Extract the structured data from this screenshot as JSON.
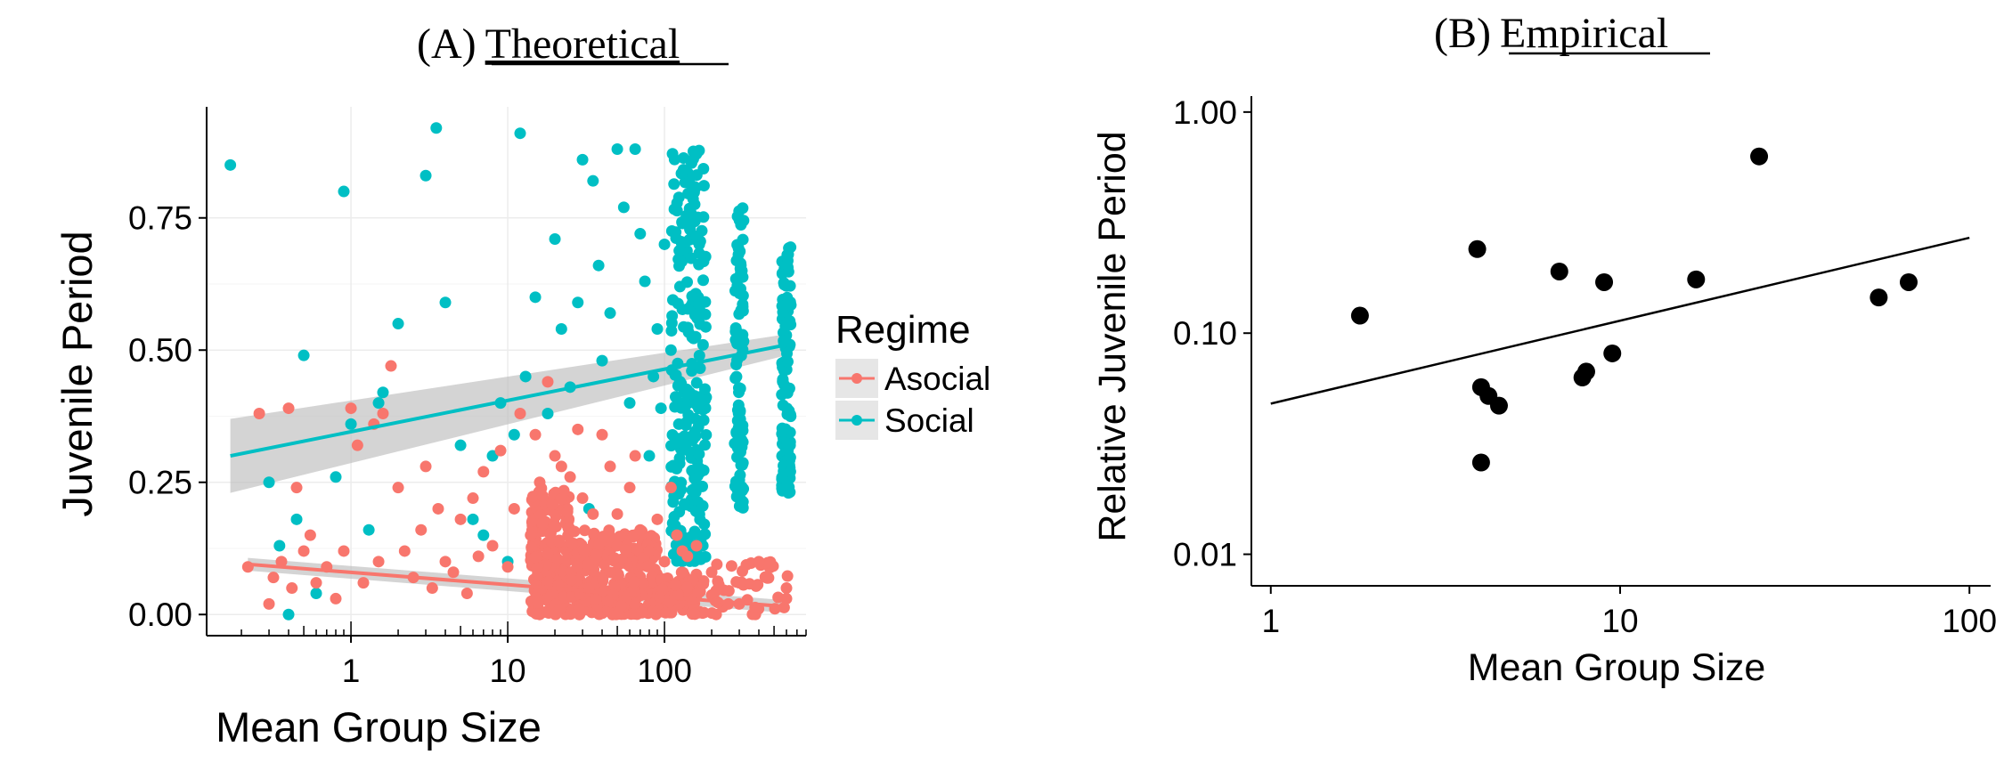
{
  "panels": {
    "a": {
      "prefix": "(A)",
      "name": "Theoretical"
    },
    "b": {
      "prefix": "(B)",
      "name": "Empirical"
    }
  },
  "chart_data": [
    {
      "type": "scatter",
      "title": "(A) Theoretical",
      "xlabel": "Mean Group Size",
      "ylabel": "Juvenile Period",
      "x_scale": "log10",
      "xlim": [
        0.12,
        800
      ],
      "ylim": [
        -0.04,
        0.96
      ],
      "x_ticks": [
        1,
        10,
        100
      ],
      "x_tick_labels": [
        "1",
        "10",
        "100"
      ],
      "y_ticks": [
        0,
        0.25,
        0.5,
        0.75
      ],
      "y_tick_labels": [
        "0.00",
        "0.25",
        "0.50",
        "0.75"
      ],
      "grid": true,
      "legend": {
        "title": "Regime",
        "placement": "right"
      },
      "colors": {
        "Asocial": "#F8766D",
        "Social": "#00BFC4",
        "ci_band": "#bdbdbd"
      },
      "series": [
        {
          "name": "Asocial",
          "color": "#F8766D",
          "points": [
            [
              0.22,
              0.09
            ],
            [
              0.26,
              0.38
            ],
            [
              0.3,
              0.02
            ],
            [
              0.32,
              0.07
            ],
            [
              0.36,
              0.1
            ],
            [
              0.4,
              0.39
            ],
            [
              0.42,
              0.05
            ],
            [
              0.45,
              0.24
            ],
            [
              0.5,
              0.12
            ],
            [
              0.55,
              0.15
            ],
            [
              0.6,
              0.06
            ],
            [
              0.7,
              0.09
            ],
            [
              0.8,
              0.03
            ],
            [
              0.9,
              0.12
            ],
            [
              1.0,
              0.39
            ],
            [
              1.1,
              0.32
            ],
            [
              1.2,
              0.06
            ],
            [
              1.4,
              0.36
            ],
            [
              1.5,
              0.1
            ],
            [
              1.6,
              0.38
            ],
            [
              1.8,
              0.47
            ],
            [
              2.0,
              0.24
            ],
            [
              2.2,
              0.12
            ],
            [
              2.5,
              0.07
            ],
            [
              2.8,
              0.16
            ],
            [
              3.0,
              0.28
            ],
            [
              3.3,
              0.05
            ],
            [
              3.6,
              0.2
            ],
            [
              4.0,
              0.1
            ],
            [
              4.5,
              0.08
            ],
            [
              5.0,
              0.18
            ],
            [
              5.5,
              0.04
            ],
            [
              6.0,
              0.22
            ],
            [
              6.5,
              0.11
            ],
            [
              7.0,
              0.27
            ],
            [
              8.0,
              0.13
            ],
            [
              9.0,
              0.31
            ],
            [
              10,
              0.09
            ],
            [
              11,
              0.2
            ],
            [
              12,
              0.38
            ],
            [
              14,
              0.15
            ],
            [
              15,
              0.34
            ],
            [
              16,
              0.25
            ],
            [
              18,
              0.44
            ],
            [
              20,
              0.3
            ],
            [
              22,
              0.28
            ],
            [
              25,
              0.26
            ],
            [
              28,
              0.35
            ],
            [
              30,
              0.22
            ],
            [
              35,
              0.19
            ],
            [
              40,
              0.34
            ],
            [
              45,
              0.28
            ],
            [
              50,
              0.19
            ],
            [
              60,
              0.24
            ],
            [
              65,
              0.3
            ],
            [
              70,
              0.16
            ],
            [
              80,
              0.12
            ],
            [
              90,
              0.18
            ],
            [
              100,
              0.1
            ],
            [
              110,
              0.24
            ],
            [
              120,
              0.15
            ],
            [
              130,
              0.12
            ],
            [
              140,
              0.11
            ],
            [
              160,
              0.13
            ],
            [
              200,
              0.08
            ],
            [
              300,
              0.06
            ],
            [
              400,
              0.1
            ],
            [
              600,
              0.05
            ],
            [
              600,
              0.03
            ],
            [
              300,
              0.02
            ]
          ],
          "dense_clusters": [
            {
              "x_range": [
                14,
                25
              ],
              "y_range": [
                0,
                0.24
              ],
              "count": 200
            },
            {
              "x_range": [
                25,
                90
              ],
              "y_range": [
                0,
                0.16
              ],
              "count": 300
            },
            {
              "x_range": [
                90,
                180
              ],
              "y_range": [
                0,
                0.08
              ],
              "count": 80
            },
            {
              "x_range": [
                200,
                620
              ],
              "y_range": [
                0,
                0.1
              ],
              "count": 40
            }
          ],
          "trend": {
            "x": [
              0.22,
              600
            ],
            "y": [
              0.095,
              0.015
            ],
            "ci": [
              0.012,
              0.012
            ]
          }
        },
        {
          "name": "Social",
          "color": "#00BFC4",
          "points": [
            [
              0.17,
              0.85
            ],
            [
              0.3,
              0.25
            ],
            [
              0.35,
              0.13
            ],
            [
              0.4,
              0.0
            ],
            [
              0.45,
              0.18
            ],
            [
              0.5,
              0.49
            ],
            [
              0.6,
              0.04
            ],
            [
              0.8,
              0.26
            ],
            [
              0.9,
              0.8
            ],
            [
              1.0,
              0.36
            ],
            [
              1.3,
              0.16
            ],
            [
              1.5,
              0.4
            ],
            [
              1.6,
              0.42
            ],
            [
              2.0,
              0.55
            ],
            [
              3.0,
              0.83
            ],
            [
              3.5,
              0.92
            ],
            [
              4.0,
              0.59
            ],
            [
              5.0,
              0.32
            ],
            [
              6.0,
              0.18
            ],
            [
              7.0,
              0.15
            ],
            [
              8.0,
              0.3
            ],
            [
              9.0,
              0.4
            ],
            [
              10,
              0.1
            ],
            [
              11,
              0.34
            ],
            [
              12,
              0.91
            ],
            [
              13,
              0.45
            ],
            [
              15,
              0.6
            ],
            [
              18,
              0.38
            ],
            [
              20,
              0.71
            ],
            [
              22,
              0.54
            ],
            [
              25,
              0.43
            ],
            [
              28,
              0.59
            ],
            [
              30,
              0.86
            ],
            [
              33,
              0.2
            ],
            [
              35,
              0.82
            ],
            [
              38,
              0.66
            ],
            [
              40,
              0.48
            ],
            [
              45,
              0.57
            ],
            [
              50,
              0.88
            ],
            [
              55,
              0.77
            ],
            [
              60,
              0.4
            ],
            [
              65,
              0.88
            ],
            [
              70,
              0.72
            ],
            [
              75,
              0.63
            ],
            [
              80,
              0.3
            ],
            [
              85,
              0.45
            ],
            [
              90,
              0.54
            ],
            [
              95,
              0.39
            ],
            [
              100,
              0.7
            ],
            [
              110,
              0.5
            ]
          ],
          "dense_clusters": [
            {
              "x_range": [
                110,
                185
              ],
              "y_range": [
                0.1,
                0.88
              ],
              "count": 250
            },
            {
              "x_range": [
                280,
                320
              ],
              "y_range": [
                0.2,
                0.77
              ],
              "count": 90
            },
            {
              "x_range": [
                560,
                640
              ],
              "y_range": [
                0.23,
                0.72
              ],
              "count": 120
            }
          ],
          "trend": {
            "x": [
              0.17,
              600
            ],
            "y": [
              0.3,
              0.51
            ],
            "ci": [
              0.07,
              0.02
            ]
          }
        }
      ]
    },
    {
      "type": "scatter",
      "title": "(B) Empirical",
      "xlabel": "Mean Group Size",
      "ylabel": "Relative Juvenile Period",
      "x_scale": "log10",
      "y_scale": "log10",
      "xlim": [
        0.88,
        115
      ],
      "ylim": [
        0.0072,
        1.18
      ],
      "x_ticks": [
        1,
        10,
        100
      ],
      "x_tick_labels": [
        "1",
        "10",
        "100"
      ],
      "y_ticks": [
        0.01,
        0.1,
        1
      ],
      "y_tick_labels": [
        "0.01",
        "0.10",
        "1.00"
      ],
      "grid": false,
      "series": [
        {
          "color": "#000000",
          "points": [
            [
              1.8,
              0.12
            ],
            [
              3.9,
              0.24
            ],
            [
              4.0,
              0.057
            ],
            [
              4.2,
              0.052
            ],
            [
              4.5,
              0.047
            ],
            [
              4.0,
              0.026
            ],
            [
              6.7,
              0.19
            ],
            [
              7.8,
              0.063
            ],
            [
              8.0,
              0.067
            ],
            [
              9.0,
              0.17
            ],
            [
              9.5,
              0.081
            ],
            [
              16.5,
              0.175
            ],
            [
              25,
              0.63
            ],
            [
              55,
              0.145
            ],
            [
              67,
              0.17
            ]
          ],
          "trend": {
            "x": [
              1,
              100
            ],
            "y": [
              0.048,
              0.27
            ]
          }
        }
      ]
    }
  ]
}
